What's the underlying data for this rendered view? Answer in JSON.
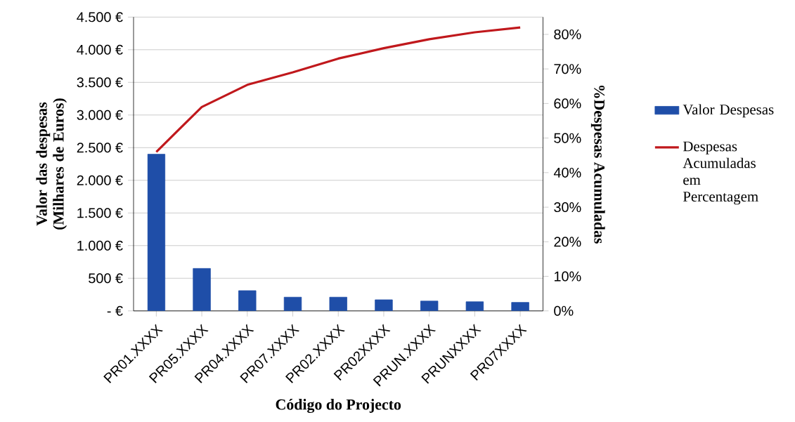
{
  "chart_data": {
    "type": "bar",
    "xlabel": "Código do Projecto",
    "ylabel": "Valor  das despesas (Milhares de Euros)",
    "y2label": "%Despesas Acumuladas",
    "categories": [
      "PR01.XXXX",
      "PR05.XXXX",
      "PR04.XXXX",
      "PR07.XXXX",
      "PR02.XXXX",
      "PR02XXXX",
      "PRUN.XXXX",
      "PRUNXXXX",
      "PR07XXXX"
    ],
    "series": [
      {
        "name": "Valor Despesas",
        "color": "#1f4ea8",
        "values": [
          2400,
          650,
          310,
          210,
          210,
          170,
          150,
          140,
          130
        ]
      },
      {
        "name": "Despesas Acumuladas em Percentagem",
        "type": "line",
        "axis": "y2",
        "color": "#c0181c",
        "values": [
          46,
          59,
          65.4,
          69,
          73,
          76,
          78.6,
          80.6,
          82
        ]
      }
    ],
    "ylim": [
      0,
      4500
    ],
    "yticks": [
      {
        "value": 0,
        "label": "-  €"
      },
      {
        "value": 500,
        "label": "500 €"
      },
      {
        "value": 1000,
        "label": "1.000 €"
      },
      {
        "value": 1500,
        "label": "1.500 €"
      },
      {
        "value": 2000,
        "label": "2.000 €"
      },
      {
        "value": 2500,
        "label": "2.500 €"
      },
      {
        "value": 3000,
        "label": "3.000 €"
      },
      {
        "value": 3500,
        "label": "3.500 €"
      },
      {
        "value": 4000,
        "label": "4.000 €"
      },
      {
        "value": 4500,
        "label": "4.500 €"
      }
    ],
    "y2lim": [
      0,
      85
    ],
    "y2ticks": [
      {
        "value": 0,
        "label": "0%"
      },
      {
        "value": 10,
        "label": "10%"
      },
      {
        "value": 20,
        "label": "20%"
      },
      {
        "value": 30,
        "label": "30%"
      },
      {
        "value": 40,
        "label": "40%"
      },
      {
        "value": 50,
        "label": "50%"
      },
      {
        "value": 60,
        "label": "60%"
      },
      {
        "value": 70,
        "label": "70%"
      },
      {
        "value": 80,
        "label": "80%"
      }
    ],
    "grid": "y",
    "legend": "right"
  }
}
